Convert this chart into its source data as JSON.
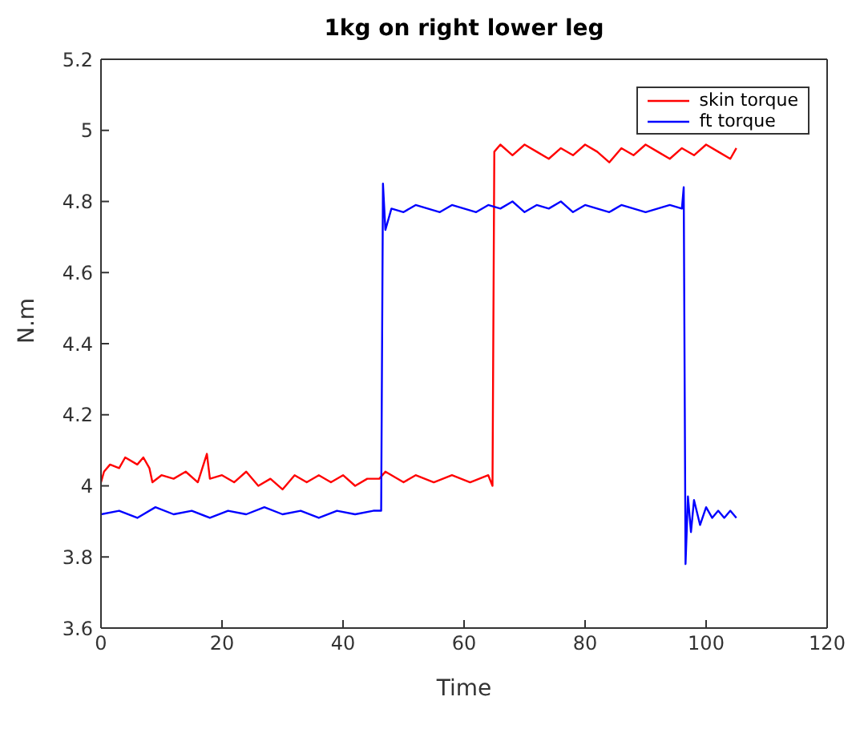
{
  "chart_data": {
    "type": "line",
    "title": "1kg on right lower leg",
    "xlabel": "Time",
    "ylabel": "N.m",
    "xlim": [
      0,
      120
    ],
    "xticks": [
      0,
      20,
      40,
      60,
      80,
      100,
      120
    ],
    "ylim": [
      3.6,
      5.2
    ],
    "yticks": [
      3.6,
      3.8,
      4,
      4.2,
      4.4,
      4.6,
      4.8,
      5,
      5.2
    ],
    "legend": "top right",
    "marker": "none",
    "line_style": "solid",
    "series": [
      {
        "name": "skin torque",
        "color": "#ff0000",
        "x": [
          0,
          0.5,
          1.5,
          3,
          4,
          6,
          7,
          8,
          8.5,
          10,
          12,
          14,
          16,
          17.5,
          18,
          20,
          22,
          24,
          26,
          28,
          30,
          32,
          34,
          36,
          38,
          40,
          42,
          44,
          46,
          47,
          50,
          52,
          55,
          58,
          61,
          64,
          64.7,
          65,
          66,
          68,
          70,
          72,
          74,
          76,
          78,
          80,
          82,
          84,
          86,
          88,
          90,
          92,
          94,
          96,
          98,
          100,
          102,
          104,
          105
        ],
        "values": [
          4.01,
          4.04,
          4.06,
          4.05,
          4.08,
          4.06,
          4.08,
          4.05,
          4.01,
          4.03,
          4.02,
          4.04,
          4.01,
          4.09,
          4.02,
          4.03,
          4.01,
          4.04,
          4.0,
          4.02,
          3.99,
          4.03,
          4.01,
          4.03,
          4.01,
          4.03,
          4.0,
          4.02,
          4.02,
          4.04,
          4.01,
          4.03,
          4.01,
          4.03,
          4.01,
          4.03,
          4.0,
          4.94,
          4.96,
          4.93,
          4.96,
          4.94,
          4.92,
          4.95,
          4.93,
          4.96,
          4.94,
          4.91,
          4.95,
          4.93,
          4.96,
          4.94,
          4.92,
          4.95,
          4.93,
          4.96,
          4.94,
          4.92,
          4.95
        ]
      },
      {
        "name": "ft torque",
        "color": "#0000ff",
        "x": [
          0,
          3,
          6,
          9,
          12,
          15,
          18,
          21,
          24,
          27,
          30,
          33,
          36,
          39,
          42,
          45,
          46.3,
          46.6,
          47,
          48,
          50,
          52,
          54,
          56,
          58,
          60,
          62,
          64,
          66,
          68,
          70,
          72,
          74,
          76,
          78,
          80,
          82,
          84,
          86,
          88,
          90,
          92,
          94,
          96,
          96.3,
          96.6,
          97,
          97.5,
          98,
          99,
          100,
          101,
          102,
          103,
          104,
          105
        ],
        "values": [
          3.92,
          3.93,
          3.91,
          3.94,
          3.92,
          3.93,
          3.91,
          3.93,
          3.92,
          3.94,
          3.92,
          3.93,
          3.91,
          3.93,
          3.92,
          3.93,
          3.93,
          4.85,
          4.72,
          4.78,
          4.77,
          4.79,
          4.78,
          4.77,
          4.79,
          4.78,
          4.77,
          4.79,
          4.78,
          4.8,
          4.77,
          4.79,
          4.78,
          4.8,
          4.77,
          4.79,
          4.78,
          4.77,
          4.79,
          4.78,
          4.77,
          4.78,
          4.79,
          4.78,
          4.84,
          3.78,
          3.97,
          3.87,
          3.96,
          3.89,
          3.94,
          3.91,
          3.93,
          3.91,
          3.93,
          3.91
        ]
      }
    ]
  }
}
